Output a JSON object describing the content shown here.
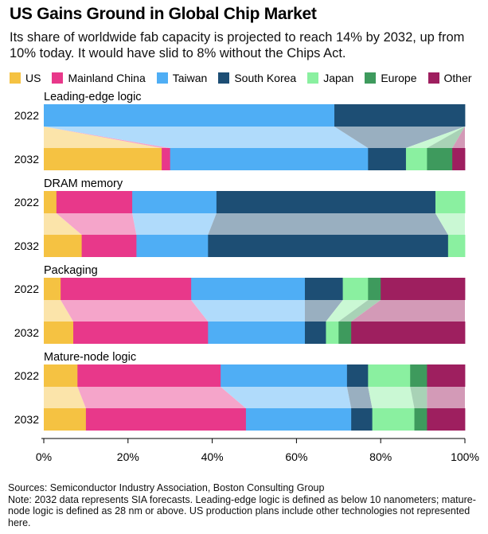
{
  "title": "US Gains Ground in Global Chip Market",
  "subtitle": "Its share of worldwide fab capacity is projected to reach 14% by 2032, up from 10% today. It would have slid to 8% without the Chips Act.",
  "legend": [
    {
      "name": "US",
      "color": "#f5c242"
    },
    {
      "name": "Mainland China",
      "color": "#e8388a"
    },
    {
      "name": "Taiwan",
      "color": "#4faef5"
    },
    {
      "name": "South Korea",
      "color": "#1d4e74"
    },
    {
      "name": "Japan",
      "color": "#8af0a0"
    },
    {
      "name": "Europe",
      "color": "#3e9a5d"
    },
    {
      "name": "Other",
      "color": "#9e1f5f"
    }
  ],
  "footer": {
    "sources": "Sources: Semiconductor Industry Association, Boston Consulting Group",
    "note": "Note: 2032 data represents SIA forecasts. Leading-edge logic is defined as below 10 nanometers; mature-node logic is defined as 28 nm or above. US production plans include other technologies not represented here."
  },
  "chart_data": {
    "type": "bar",
    "stacked": true,
    "orientation": "horizontal",
    "normalized": true,
    "x_ticks": [
      "0%",
      "20%",
      "40%",
      "60%",
      "80%",
      "100%"
    ],
    "xlim": [
      0,
      100
    ],
    "series_names": [
      "US",
      "Mainland China",
      "Taiwan",
      "South Korea",
      "Japan",
      "Europe",
      "Other"
    ],
    "panels": [
      {
        "name": "Leading-edge logic",
        "rows": [
          {
            "year": "2022",
            "values": [
              0,
              0,
              69,
              31,
              0,
              0,
              0
            ]
          },
          {
            "year": "2032",
            "values": [
              28,
              2,
              47,
              9,
              5,
              6,
              3
            ]
          }
        ]
      },
      {
        "name": "DRAM memory",
        "rows": [
          {
            "year": "2022",
            "values": [
              3,
              18,
              20,
              52,
              7,
              0,
              0
            ]
          },
          {
            "year": "2032",
            "values": [
              9,
              13,
              17,
              57,
              4,
              0,
              0
            ]
          }
        ]
      },
      {
        "name": "Packaging",
        "rows": [
          {
            "year": "2022",
            "values": [
              4,
              31,
              27,
              9,
              6,
              3,
              20
            ]
          },
          {
            "year": "2032",
            "values": [
              7,
              32,
              23,
              5,
              3,
              3,
              27
            ]
          }
        ]
      },
      {
        "name": "Mature-node logic",
        "rows": [
          {
            "year": "2022",
            "values": [
              8,
              34,
              30,
              5,
              10,
              4,
              9
            ]
          },
          {
            "year": "2032",
            "values": [
              10,
              38,
              25,
              5,
              10,
              3,
              9
            ]
          }
        ]
      }
    ]
  }
}
